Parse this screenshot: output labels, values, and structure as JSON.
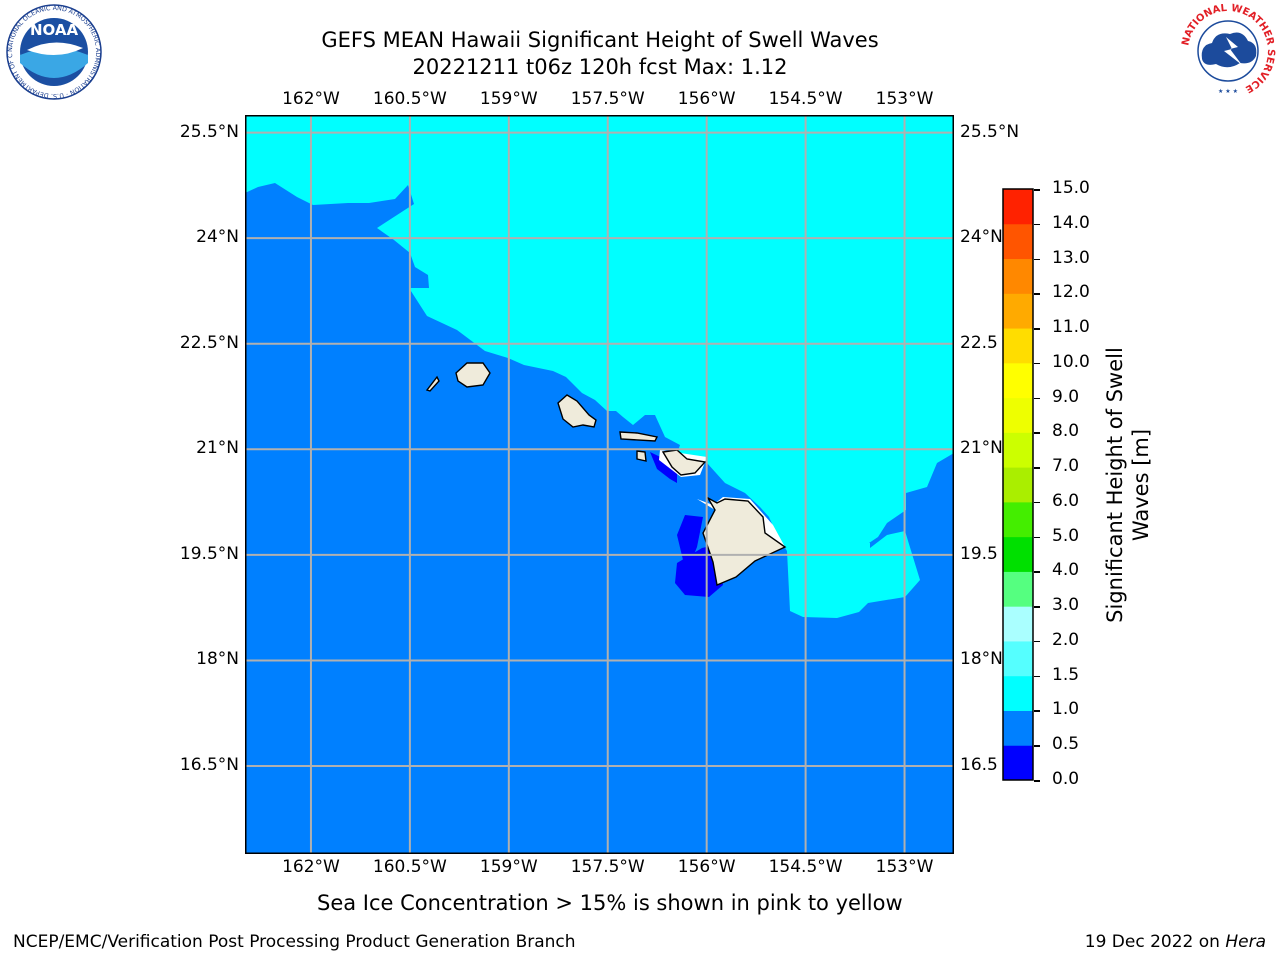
{
  "title": {
    "line1": "GEFS MEAN Hawaii Significant Height of Swell Waves",
    "line2": "20221211 t06z 120h fcst   Max: 1.12"
  },
  "map": {
    "lon_labels": [
      "162°W",
      "160.5°W",
      "159°W",
      "157.5°W",
      "156°W",
      "154.5°W",
      "153°W"
    ],
    "lat_labels": [
      "25.5°N",
      "24°N",
      "22.5°N",
      "21°N",
      "19.5°N",
      "18°N",
      "16.5°N"
    ],
    "lat_labels_right": [
      "25.5°N",
      "24°N",
      "22.5",
      "21°N",
      "19.5",
      "18°N",
      "16.5"
    ],
    "lon_range": [
      -163,
      -152.25
    ],
    "lat_range": [
      15.25,
      25.75
    ],
    "field": "significant height of swell waves",
    "colors": {
      "cyan_region": "#00ffff",
      "blue_region": "#0080ff",
      "dark_blue": "#0000ff",
      "land": "#efebdb",
      "grid": "#b0b0b0"
    }
  },
  "colorbar": {
    "label": "Significant Height of Swell Waves [m]",
    "ticks": [
      "0.0",
      "0.5",
      "1.0",
      "1.5",
      "2.0",
      "3.0",
      "4.0",
      "5.0",
      "6.0",
      "7.0",
      "8.0",
      "9.0",
      "10.0",
      "11.0",
      "12.0",
      "13.0",
      "14.0",
      "15.0"
    ],
    "colors": [
      "#0000ff",
      "#0080ff",
      "#00ffff",
      "#55ffff",
      "#aaffff",
      "#55ff80",
      "#00e000",
      "#44ee00",
      "#aaee00",
      "#ccff00",
      "#eeff00",
      "#ffff00",
      "#ffdd00",
      "#ffaa00",
      "#ff8800",
      "#ff5500",
      "#ff2200",
      "#ff0000"
    ]
  },
  "note": "Sea Ice Concentration > 15% is shown in pink to yellow",
  "footer": {
    "left": "NCEP/EMC/Verification Post Processing Product Generation Branch",
    "date": "19 Dec 2022 on ",
    "machine": "Hera"
  },
  "logos": {
    "noaa": "NOAA",
    "noaa_ring": "NATIONAL OCEANIC AND ATMOSPHERIC ADMINISTRATION · U.S. DEPARTMENT OF COMMERCE",
    "nws_ring": "NATIONAL WEATHER SERVICE"
  }
}
